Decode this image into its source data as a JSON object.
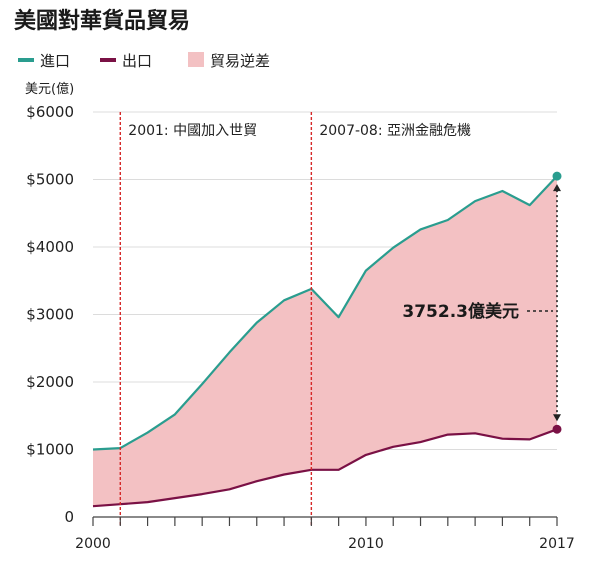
{
  "chart_data": {
    "type": "area",
    "title": "美國對華貨品貿易",
    "ylabel": "美元(億)",
    "ylim": [
      0,
      6000
    ],
    "xlim": [
      2000,
      2017
    ],
    "y_ticks": [
      0,
      1000,
      2000,
      3000,
      4000,
      5000,
      6000
    ],
    "y_tick_labels": [
      "0",
      "$1000",
      "$2000",
      "$3000",
      "$4000",
      "$5000",
      "$6000"
    ],
    "x_tick_labels": [
      {
        "x": 2000,
        "label": "2000"
      },
      {
        "x": 2010,
        "label": "2010"
      },
      {
        "x": 2017,
        "label": "2017"
      }
    ],
    "grid": true,
    "legend_position": "top-left",
    "legend": [
      {
        "key": "imports",
        "label": "進口",
        "color": "#2a9d8f",
        "kind": "line"
      },
      {
        "key": "exports",
        "label": "出口",
        "color": "#7a1145",
        "kind": "line"
      },
      {
        "key": "deficit",
        "label": "貿易逆差",
        "color": "#f3c1c3",
        "kind": "area"
      }
    ],
    "x": [
      2000,
      2001,
      2002,
      2003,
      2004,
      2005,
      2006,
      2007,
      2008,
      2009,
      2010,
      2011,
      2012,
      2013,
      2014,
      2015,
      2016,
      2017
    ],
    "series": [
      {
        "name": "進口",
        "key": "imports",
        "color": "#2a9d8f",
        "values": [
          1000,
          1020,
          1250,
          1520,
          1970,
          2440,
          2880,
          3210,
          3380,
          2960,
          3650,
          3990,
          4260,
          4400,
          4680,
          4830,
          4620,
          5050
        ]
      },
      {
        "name": "出口",
        "key": "exports",
        "color": "#7a1145",
        "values": [
          160,
          190,
          220,
          280,
          340,
          410,
          530,
          630,
          700,
          700,
          920,
          1040,
          1110,
          1220,
          1240,
          1160,
          1150,
          1300
        ]
      }
    ],
    "area_fill": "#f3c1c3",
    "annotations": [
      {
        "x": 2001,
        "label": "2001: 中國加入世貿",
        "color": "#d62828"
      },
      {
        "x": 2008,
        "label": "2007-08: 亞洲金融危機",
        "color": "#d62828"
      }
    ],
    "callout": {
      "label": "3752.3億美元",
      "x": 2017
    }
  }
}
